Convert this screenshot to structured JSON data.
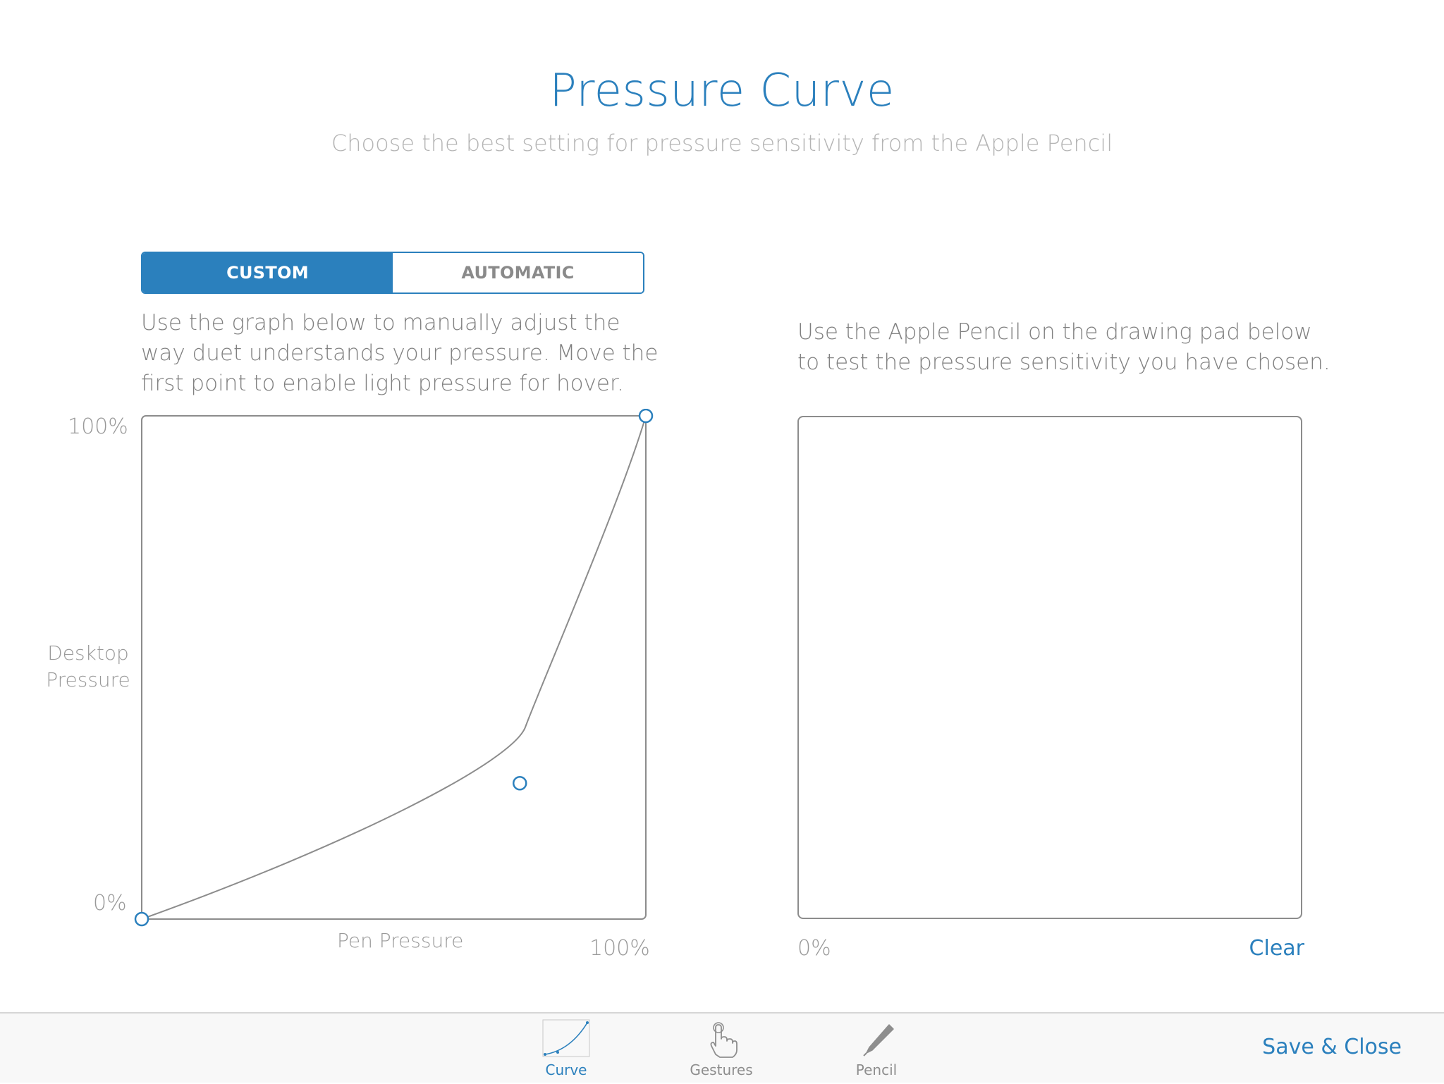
{
  "header": {
    "title": "Pressure Curve",
    "subtitle": "Choose the best setting for pressure sensitivity from the Apple Pencil"
  },
  "mode_toggle": {
    "options": [
      {
        "label": "CUSTOM",
        "selected": true
      },
      {
        "label": "AUTOMATIC",
        "selected": false
      }
    ]
  },
  "left_panel": {
    "description": "Use the graph below to manually adjust the way duet understands your pressure. Move the first point to enable light pressure for hover.",
    "y_axis": {
      "title": "Desktop Pressure",
      "max_label": "100%",
      "min_label": "0%"
    },
    "x_axis": {
      "title": "Pen Pressure",
      "max_label": "100%"
    },
    "curve": {
      "start": {
        "x": 0,
        "y": 0
      },
      "control": {
        "x": 75,
        "y": 27
      },
      "end": {
        "x": 100,
        "y": 100
      }
    }
  },
  "right_panel": {
    "description": "Use the Apple Pencil on the drawing pad below to test the pressure sensitivity you have chosen.",
    "min_label": "0%",
    "clear_label": "Clear"
  },
  "tab_bar": {
    "tabs": [
      {
        "label": "Curve",
        "icon": "curve-icon",
        "active": true
      },
      {
        "label": "Gestures",
        "icon": "hand-pointer-icon",
        "active": false
      },
      {
        "label": "Pencil",
        "icon": "pencil-icon",
        "active": false
      }
    ],
    "save_label": "Save & Close"
  },
  "colors": {
    "accent": "#2b80bd",
    "muted_text": "#808080",
    "border": "#8c8c8c"
  }
}
